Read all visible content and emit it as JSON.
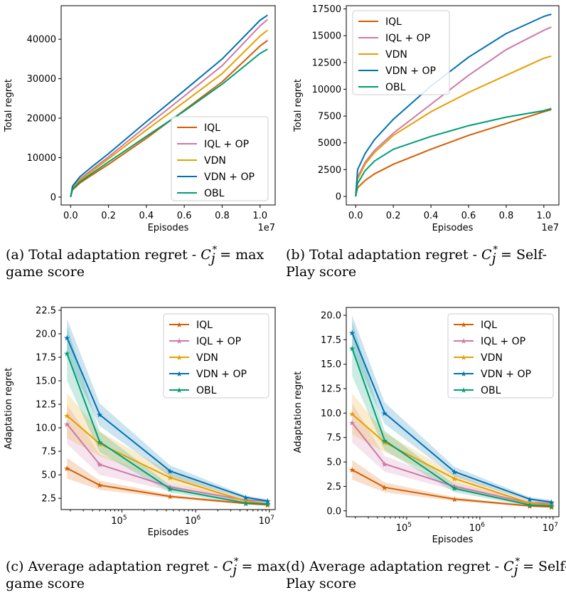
{
  "colors": {
    "IQL": "#d55e00",
    "IQL + OP": "#cc79a7",
    "VDN": "#e69f00",
    "VDN + OP": "#0072b2",
    "OBL": "#009e73"
  },
  "chart_data": [
    {
      "id": "a",
      "type": "line",
      "caption": {
        "prefix": "(a) Total adaptation regret -",
        "var": "C",
        "sub": "j",
        "sup": "*",
        "suffix_line1": "= max",
        "line2": "game score"
      },
      "xlabel": "Episodes",
      "ylabel": "Total regret",
      "x_offset_label": "1e7",
      "xlim": [
        -0.05,
        1.08
      ],
      "ylim": [
        -2000,
        48500
      ],
      "xticks": [
        0.0,
        0.2,
        0.4,
        0.6,
        0.8,
        1.0
      ],
      "xtick_labels": [
        "0.0",
        "0.2",
        "0.4",
        "0.6",
        "0.8",
        "1.0"
      ],
      "yticks": [
        0,
        10000,
        20000,
        30000,
        40000
      ],
      "ytick_labels": [
        "0",
        "10000",
        "20000",
        "30000",
        "40000"
      ],
      "legend": "lower-right",
      "series": [
        {
          "name": "IQL",
          "x": [
            0.0,
            0.01,
            0.05,
            0.1,
            0.2,
            0.4,
            0.6,
            0.8,
            1.0,
            1.04
          ],
          "y": [
            0,
            1800,
            3600,
            5200,
            8300,
            14900,
            22000,
            29200,
            38300,
            39700
          ]
        },
        {
          "name": "IQL + OP",
          "x": [
            0.0,
            0.01,
            0.05,
            0.1,
            0.2,
            0.4,
            0.6,
            0.8,
            1.0,
            1.04
          ],
          "y": [
            0,
            2400,
            4600,
            6500,
            10200,
            18000,
            25600,
            33300,
            43400,
            45000
          ]
        },
        {
          "name": "VDN",
          "x": [
            0.0,
            0.01,
            0.05,
            0.1,
            0.2,
            0.4,
            0.6,
            0.8,
            1.0,
            1.04
          ],
          "y": [
            0,
            2200,
            4300,
            6100,
            9700,
            17000,
            24100,
            31300,
            40800,
            42300
          ]
        },
        {
          "name": "VDN + OP",
          "x": [
            0.0,
            0.01,
            0.05,
            0.1,
            0.2,
            0.4,
            0.6,
            0.8,
            1.0,
            1.04
          ],
          "y": [
            0,
            2800,
            5200,
            7200,
            11000,
            19100,
            27000,
            35000,
            44800,
            46100
          ]
        },
        {
          "name": "OBL",
          "x": [
            0.0,
            0.01,
            0.05,
            0.1,
            0.2,
            0.4,
            0.6,
            0.8,
            1.0,
            1.04
          ],
          "y": [
            0,
            2000,
            3900,
            5600,
            8900,
            15400,
            21800,
            28600,
            36400,
            37500
          ]
        }
      ]
    },
    {
      "id": "b",
      "type": "line",
      "caption": {
        "prefix": "(b) Total adaptation regret -",
        "var": "C",
        "sub": "j",
        "sup": "*",
        "suffix_line1": "= Self-",
        "line2": "Play score"
      },
      "xlabel": "Episodes",
      "ylabel": "Total regret",
      "x_offset_label": "1e7",
      "xlim": [
        -0.05,
        1.08
      ],
      "ylim": [
        -800,
        17800
      ],
      "xticks": [
        0.0,
        0.2,
        0.4,
        0.6,
        0.8,
        1.0
      ],
      "xtick_labels": [
        "0.0",
        "0.2",
        "0.4",
        "0.6",
        "0.8",
        "1.0"
      ],
      "yticks": [
        0,
        2500,
        5000,
        7500,
        10000,
        12500,
        15000,
        17500
      ],
      "ytick_labels": [
        "0",
        "2500",
        "5000",
        "7500",
        "10000",
        "12500",
        "15000",
        "17500"
      ],
      "legend": "upper-left",
      "series": [
        {
          "name": "IQL",
          "x": [
            0.0,
            0.01,
            0.05,
            0.1,
            0.2,
            0.4,
            0.6,
            0.8,
            1.0,
            1.04
          ],
          "y": [
            0,
            800,
            1500,
            2100,
            3000,
            4400,
            5700,
            6800,
            7900,
            8100
          ]
        },
        {
          "name": "IQL + OP",
          "x": [
            0.0,
            0.01,
            0.05,
            0.1,
            0.2,
            0.4,
            0.6,
            0.8,
            1.0,
            1.04
          ],
          "y": [
            0,
            1800,
            3200,
            4300,
            5900,
            8600,
            11300,
            13700,
            15500,
            15800
          ]
        },
        {
          "name": "VDN",
          "x": [
            0.0,
            0.01,
            0.05,
            0.1,
            0.2,
            0.4,
            0.6,
            0.8,
            1.0,
            1.04
          ],
          "y": [
            0,
            1600,
            3000,
            4100,
            5700,
            7900,
            9700,
            11300,
            12900,
            13100
          ]
        },
        {
          "name": "VDN + OP",
          "x": [
            0.0,
            0.01,
            0.05,
            0.1,
            0.2,
            0.4,
            0.6,
            0.8,
            1.0,
            1.04
          ],
          "y": [
            0,
            2500,
            4000,
            5300,
            7200,
            10300,
            13000,
            15200,
            16800,
            17000
          ]
        },
        {
          "name": "OBL",
          "x": [
            0.0,
            0.01,
            0.05,
            0.1,
            0.2,
            0.4,
            0.6,
            0.8,
            1.0,
            1.04
          ],
          "y": [
            0,
            1200,
            2400,
            3300,
            4400,
            5600,
            6600,
            7400,
            8000,
            8200
          ]
        }
      ]
    },
    {
      "id": "c",
      "type": "line",
      "caption": {
        "prefix": "(c) Average adaptation regret -",
        "var": "C",
        "sub": "j",
        "sup": "*",
        "suffix_line1": "= max",
        "line2": "game score"
      },
      "xlabel": "Episodes",
      "ylabel": "Adaptation regret",
      "xscale": "log",
      "xlim": [
        15000,
        12000000
      ],
      "ylim": [
        1.3,
        22.8
      ],
      "xticks": [
        100000,
        1000000,
        10000000
      ],
      "xtick_labels": [
        "10^5",
        "10^6",
        "10^7"
      ],
      "yticks": [
        2.5,
        5.0,
        7.5,
        10.0,
        12.5,
        15.0,
        17.5,
        20.0,
        22.5
      ],
      "ytick_labels": [
        "2.5",
        "5.0",
        "7.5",
        "10.0",
        "12.5",
        "15.0",
        "17.5",
        "20.0",
        "22.5"
      ],
      "legend": "upper-right",
      "series": [
        {
          "name": "IQL",
          "x": [
            18000,
            50000,
            450000,
            4800000,
            9500000
          ],
          "y": [
            5.7,
            3.9,
            2.7,
            1.95,
            1.8
          ],
          "band": [
            [
              4.6,
              6.8
            ],
            [
              3.4,
              4.4
            ],
            [
              2.5,
              2.9
            ],
            [
              1.85,
              2.05
            ],
            [
              1.7,
              1.9
            ]
          ]
        },
        {
          "name": "IQL + OP",
          "x": [
            18000,
            50000,
            450000,
            4800000,
            9500000
          ],
          "y": [
            10.4,
            6.1,
            3.7,
            2.3,
            2.2
          ],
          "band": [
            [
              8.3,
              12.5
            ],
            [
              5.0,
              7.2
            ],
            [
              3.3,
              4.1
            ],
            [
              2.1,
              2.5
            ],
            [
              2.0,
              2.4
            ]
          ]
        },
        {
          "name": "VDN",
          "x": [
            18000,
            50000,
            450000,
            4800000,
            9500000
          ],
          "y": [
            11.3,
            8.3,
            4.7,
            2.2,
            1.9
          ],
          "band": [
            [
              8.9,
              13.7
            ],
            [
              7.0,
              9.6
            ],
            [
              4.1,
              5.3
            ],
            [
              2.0,
              2.4
            ],
            [
              1.75,
              2.05
            ]
          ]
        },
        {
          "name": "VDN + OP",
          "x": [
            18000,
            50000,
            450000,
            4800000,
            9500000
          ],
          "y": [
            19.6,
            11.4,
            5.4,
            2.6,
            2.2
          ],
          "band": [
            [
              17.6,
              21.6
            ],
            [
              10.2,
              12.6
            ],
            [
              4.8,
              6.0
            ],
            [
              2.4,
              2.8
            ],
            [
              2.0,
              2.4
            ]
          ]
        },
        {
          "name": "OBL",
          "x": [
            18000,
            50000,
            450000,
            4800000,
            9500000
          ],
          "y": [
            17.9,
            8.5,
            3.5,
            2.0,
            1.9
          ],
          "band": [
            [
              15.0,
              20.8
            ],
            [
              7.4,
              9.6
            ],
            [
              3.1,
              3.9
            ],
            [
              1.85,
              2.15
            ],
            [
              1.75,
              2.05
            ]
          ]
        }
      ]
    },
    {
      "id": "d",
      "type": "line",
      "caption": {
        "prefix": "(d) Average adaptation regret -",
        "var": "C",
        "sub": "j",
        "sup": "*",
        "suffix_line1": "= Self-",
        "line2": "Play score"
      },
      "xlabel": "Episodes",
      "ylabel": "Adaptation regret",
      "xscale": "log",
      "xlim": [
        15000,
        12000000
      ],
      "ylim": [
        -0.6,
        20.8
      ],
      "xticks": [
        100000,
        1000000,
        10000000
      ],
      "xtick_labels": [
        "10^5",
        "10^6",
        "10^7"
      ],
      "yticks": [
        0.0,
        2.5,
        5.0,
        7.5,
        10.0,
        12.5,
        15.0,
        17.5,
        20.0
      ],
      "ytick_labels": [
        "0.0",
        "2.5",
        "5.0",
        "7.5",
        "10.0",
        "12.5",
        "15.0",
        "17.5",
        "20.0"
      ],
      "legend": "upper-right",
      "series": [
        {
          "name": "IQL",
          "x": [
            18000,
            50000,
            450000,
            4800000,
            9500000
          ],
          "y": [
            4.2,
            2.4,
            1.2,
            0.5,
            0.4
          ],
          "band": [
            [
              3.2,
              5.2
            ],
            [
              1.9,
              2.9
            ],
            [
              1.0,
              1.4
            ],
            [
              0.4,
              0.6
            ],
            [
              0.3,
              0.5
            ]
          ]
        },
        {
          "name": "IQL + OP",
          "x": [
            18000,
            50000,
            450000,
            4800000,
            9500000
          ],
          "y": [
            9.0,
            4.8,
            2.5,
            0.8,
            0.8
          ],
          "band": [
            [
              7.0,
              11.0
            ],
            [
              4.0,
              5.6
            ],
            [
              2.1,
              2.9
            ],
            [
              0.6,
              1.0
            ],
            [
              0.6,
              1.0
            ]
          ]
        },
        {
          "name": "VDN",
          "x": [
            18000,
            50000,
            450000,
            4800000,
            9500000
          ],
          "y": [
            9.9,
            7.0,
            3.3,
            0.8,
            0.6
          ],
          "band": [
            [
              7.8,
              12.0
            ],
            [
              6.0,
              8.0
            ],
            [
              2.8,
              3.8
            ],
            [
              0.6,
              1.0
            ],
            [
              0.45,
              0.75
            ]
          ]
        },
        {
          "name": "VDN + OP",
          "x": [
            18000,
            50000,
            450000,
            4800000,
            9500000
          ],
          "y": [
            18.2,
            10.0,
            4.0,
            1.2,
            0.9
          ],
          "band": [
            [
              16.4,
              20.0
            ],
            [
              8.9,
              11.1
            ],
            [
              3.5,
              4.5
            ],
            [
              1.0,
              1.4
            ],
            [
              0.7,
              1.1
            ]
          ]
        },
        {
          "name": "OBL",
          "x": [
            18000,
            50000,
            450000,
            4800000,
            9500000
          ],
          "y": [
            16.6,
            7.2,
            2.3,
            0.6,
            0.5
          ],
          "band": [
            [
              13.8,
              19.4
            ],
            [
              6.2,
              8.2
            ],
            [
              1.9,
              2.7
            ],
            [
              0.45,
              0.75
            ],
            [
              0.35,
              0.65
            ]
          ]
        }
      ]
    }
  ]
}
